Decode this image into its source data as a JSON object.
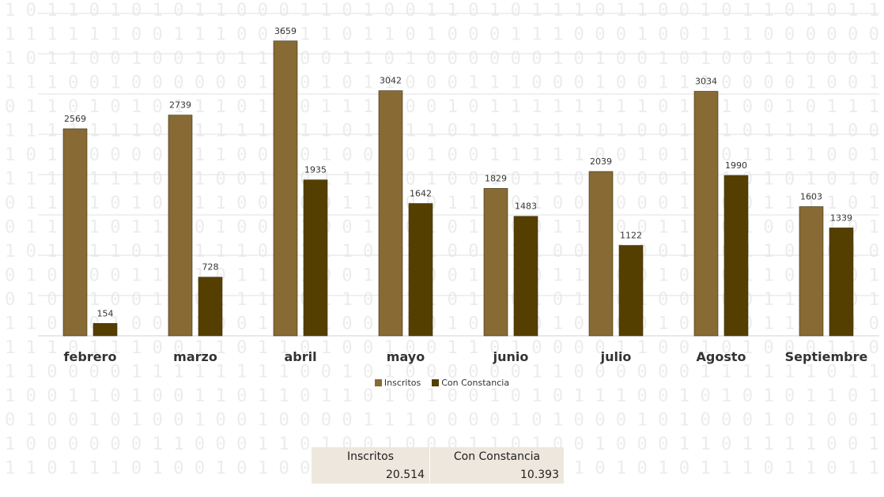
{
  "chart_data": {
    "type": "bar",
    "categories": [
      "febrero",
      "marzo",
      "abril",
      "mayo",
      "junio",
      "julio",
      "Agosto",
      "Septiembre"
    ],
    "series": [
      {
        "name": "Inscritos",
        "color": "#876a34",
        "values": [
          2569,
          2739,
          3659,
          3042,
          1829,
          2039,
          3034,
          1603
        ]
      },
      {
        "name": "Con Constancia",
        "color": "#553f00",
        "values": [
          154,
          728,
          1935,
          1642,
          1483,
          1122,
          1990,
          1339
        ]
      }
    ],
    "ylim": [
      0,
      4000
    ],
    "grid": true,
    "legend_position": "bottom"
  },
  "totals_table": {
    "headers": [
      "Inscritos",
      "Con Constancia"
    ],
    "values": [
      "20.514",
      "10.393"
    ]
  },
  "background": {
    "rows": [
      "1 0 1 1 0 1 0 1 0 1 1 0 0 0 1 1 0 1 0 0 1 1 0 1 0 1 1 1 0 1 1 0 0 1 0 1 1 0 1 0 1 1",
      "1 1 1 1 1 1 0 0 1 1 1 0 0 0 1 1 0 1 1 0 1 0 0 0 1 1 1 0 0 0 1 0 0 1 1 1 0 0 0 0 0 0",
      "1 0 1 1 0 0 1 0 0 1 0 1 1 0 0 0 1 1 0 1 0 0 0 0 0 0 1 0 1 0 0 1 0 1 0 0 1 1 0 0 0 1",
      "1 1 1 0 0 1 0 0 0 0 0 0 1 0 0 1 0 1 1 0 0 0 1 1 1 0 0 0 1 0 0 1 1 1 0 0 0 0 1 0 0 1",
      "0 1 1 0 1 0 1 0 1 1 1 0 1 0 0 1 1 1 1 0 0 1 0 1 1 1 1 1 1 1 1 0 1 0 1 0 0 1 0 1 1 1",
      "1 1 1 1 1 1 1 0 1 1 1 1 1 0 1 1 0 1 0 1 1 0 1 1 1 1 1 1 1 1 0 0 1 0 1 0 1 1 1 1 0 0",
      "1 0 1 1 0 0 0 0 0 1 1 0 0 0 0 1 0 0 1 0 1 0 0 1 1 1 1 1 0 0 1 0 1 0 0 1 1 1 1 0 0 1",
      "1 1 1 1 1 1 1 0 1 1 0 0 1 1 0 1 1 1 0 0 1 0 0 1 0 1 1 0 1 0 0 0 1 1 1 0 1 0 1 0 1 0",
      "0 1 1 0 1 0 1 0 1 1 1 0 0 1 0 0 1 1 1 0 0 1 1 1 0 1 0 0 1 0 0 0 1 1 0 0 1 1 1 1 0 1",
      "0 1 1 1 1 0 1 1 1 0 1 0 0 1 1 0 0 1 1 0 1 0 1 0 0 0 1 1 1 0 0 1 1 1 0 1 0 0 1 1 0 1",
      "1 0 1 0 1 1 0 1 0 1 1 1 0 0 1 1 1 0 0 1 1 0 0 0 1 1 0 0 0 1 0 0 1 1 0 1 1 0 1 0 1 0",
      "0 1 0 1 0 0 1 1 0 1 0 1 1 0 1 0 0 1 1 1 0 0 1 1 1 0 1 1 0 0 0 1 0 1 0 1 1 0 1 1 0 1",
      "0 1 0 1 1 0 0 1 1 0 1 1 1 0 0 1 1 0 1 1 1 0 1 0 0 1 0 1 1 0 1 0 0 1 0 0 1 1 0 1 0 1",
      "1 1 0 1 0 1 0 0 1 1 0 0 1 0 1 1 0 0 1 1 0 1 0 1 1 0 1 0 1 0 0 1 0 0 1 0 1 1 0 1 1 0",
      "1 1 1 0 1 1 1 0 0 1 1 0 1 1 0 1 0 0 1 0 0 1 1 0 1 0 0 0 0 1 1 0 0 1 0 1 0 0 0 1 1 0",
      "1 1 0 0 0 0 1 1 1 1 1 1 1 1 0 0 1 0 1 0 0 0 0 0 0 1 1 0 0 0 0 0 0 1 1 1 1 1 1 0 1 1",
      "1 0 0 1 1 0 1 0 0 1 1 0 1 1 0 1 1 0 1 0 1 0 0 1 0 1 0 1 1 1 0 0 1 0 1 0 1 0 1 1 0 1",
      "0 1 0 0 1 0 1 0 0 1 0 0 1 0 0 0 0 1 1 1 0 0 0 0 1 0 1 0 0 0 1 0 1 0 0 0 1 0 1 0 0 1",
      "1 0 0 0 0 0 0 1 1 0 0 0 1 1 0 1 0 0 1 0 0 0 1 1 0 1 0 0 1 0 0 0 1 1 0 1 1 1 1 0 0 1",
      "1 1 0 1 1 1 0 1 0 0 1 0 1 0 0 0 1 0 1 1 1 0 0 0 1 1 0 1 0 1 0 1 0 1 1 1 0 1 1 0 1 1"
    ]
  }
}
